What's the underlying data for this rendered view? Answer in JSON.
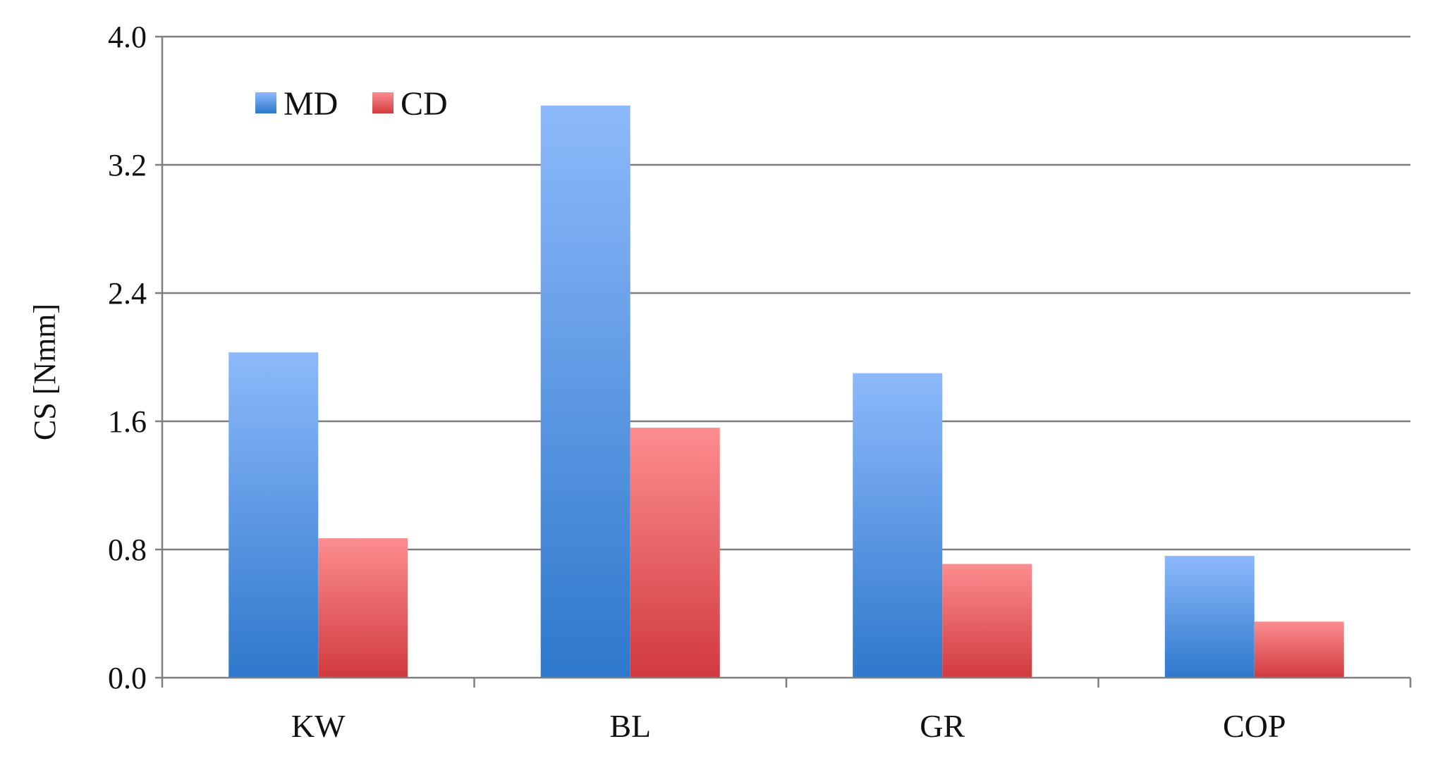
{
  "chart_data": {
    "type": "bar",
    "title": "",
    "xlabel": "",
    "ylabel": "CS [Nmm]",
    "categories": [
      "KW",
      "BL",
      "GR",
      "COP"
    ],
    "series": [
      {
        "name": "MD",
        "values": [
          2.03,
          3.57,
          1.9,
          0.76
        ]
      },
      {
        "name": "CD",
        "values": [
          0.87,
          1.56,
          0.71,
          0.35
        ]
      }
    ],
    "ylim": [
      0,
      4.0
    ],
    "yticks": [
      "0.0",
      "0.8",
      "1.6",
      "2.4",
      "3.2",
      "4.0"
    ],
    "grid": true,
    "legend_position": "top-left",
    "colors": {
      "MD_top": "#8db9fb",
      "MD_bottom": "#2e78cb",
      "CD_top": "#fc8d8f",
      "CD_bottom": "#d13a3e",
      "grid": "#7f7f7f",
      "axis": "#7f7f7f"
    }
  }
}
